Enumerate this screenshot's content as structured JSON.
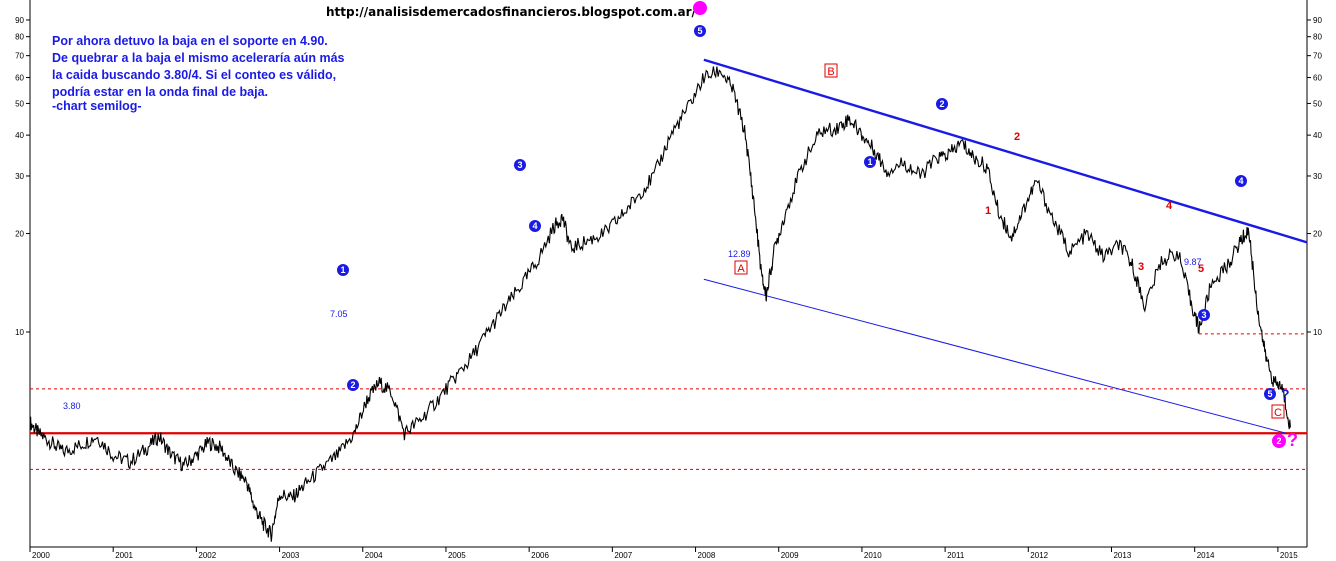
{
  "source_url": "http://analisisdemercadosfinancieros.blogspot.com.ar/",
  "note_lines": [
    "Por ahora detuvo la baja en el soporte en 4.90.",
    "De quebrar a la baja el mismo aceleraría aún más",
    "la caida buscando 3.80/4. Si el conteo es válido,",
    "podría estar en la onda final de baja.",
    "-chart semilog-"
  ],
  "colors": {
    "price": "#000000",
    "trend_line": "#1a1ae6",
    "support": "#e00000",
    "wave_blue": "#1a1ae6",
    "wave_red": "#e00000",
    "highlight": "#ff00ff"
  },
  "chart_data": {
    "type": "line",
    "scale": "log",
    "ylim": [
      2.2,
      100
    ],
    "xlim": [
      2000.0,
      2015.35
    ],
    "y_ticks": [
      10,
      20,
      30,
      40,
      50,
      60,
      70,
      80,
      90
    ],
    "x_ticks": [
      "2000",
      "2001",
      "2002",
      "2003",
      "2004",
      "2005",
      "2006",
      "2007",
      "2008",
      "2009",
      "2010",
      "2011",
      "2012",
      "2013",
      "2014",
      "2015"
    ],
    "grid": false,
    "series": [
      {
        "values_x": [
          2000.0,
          2000.1,
          2000.25,
          2000.4,
          2000.6,
          2000.8,
          2001.0,
          2001.2,
          2001.4,
          2001.55,
          2001.7,
          2001.85,
          2002.0,
          2002.15,
          2002.3,
          2002.45,
          2002.6,
          2002.7,
          2002.8,
          2002.9,
          2003.0,
          2003.15,
          2003.3,
          2003.5,
          2003.7,
          2003.9,
          2004.05,
          2004.2,
          2004.35,
          2004.5,
          2004.7,
          2004.9,
          2005.1,
          2005.3,
          2005.5,
          2005.7,
          2005.9,
          2006.1,
          2006.3,
          2006.4,
          2006.5,
          2006.7,
          2006.9,
          2007.1,
          2007.3,
          2007.5,
          2007.7,
          2007.9,
          2008.1,
          2008.3,
          2008.45,
          2008.6,
          2008.7,
          2008.8,
          2008.85,
          2008.95,
          2009.1,
          2009.3,
          2009.5,
          2009.7,
          2009.85,
          2010.0,
          2010.15,
          2010.3,
          2010.5,
          2010.7,
          2010.9,
          2011.05,
          2011.2,
          2011.35,
          2011.5,
          2011.65,
          2011.8,
          2011.95,
          2012.1,
          2012.3,
          2012.5,
          2012.7,
          2012.9,
          2013.1,
          2013.25,
          2013.4,
          2013.6,
          2013.8,
          2013.95,
          2014.05,
          2014.2,
          2014.4,
          2014.55,
          2014.65,
          2014.75,
          2014.85,
          2014.95,
          2015.05,
          2015.15
        ],
        "values_y": [
          5.3,
          4.9,
          4.6,
          4.3,
          4.5,
          4.8,
          4.2,
          4.0,
          4.4,
          4.8,
          4.2,
          3.9,
          4.2,
          4.6,
          4.4,
          3.8,
          3.5,
          2.9,
          2.6,
          2.4,
          3.2,
          3.1,
          3.4,
          3.8,
          4.2,
          4.9,
          6.2,
          7.0,
          6.5,
          4.9,
          5.4,
          6.2,
          7.2,
          8.3,
          10.0,
          11.8,
          13.8,
          16.5,
          21.0,
          22.5,
          18.0,
          19.0,
          20.0,
          22.5,
          26.0,
          30.0,
          40.0,
          48.0,
          60.0,
          63.0,
          55.0,
          40.0,
          25.0,
          14.5,
          12.9,
          18.0,
          24.0,
          33.0,
          41.0,
          42.0,
          45.0,
          40.0,
          36.0,
          31.0,
          33.0,
          30.0,
          34.0,
          35.0,
          38.0,
          34.0,
          32.0,
          23.0,
          19.5,
          24.0,
          29.0,
          22.0,
          17.5,
          20.0,
          17.0,
          18.5,
          16.0,
          12.0,
          16.5,
          17.5,
          12.5,
          10.2,
          14.0,
          16.0,
          19.0,
          20.5,
          12.0,
          8.5,
          7.0,
          6.8,
          5.1
        ]
      }
    ],
    "support_levels": [
      {
        "value": 4.9,
        "style": "solid"
      },
      {
        "value": 3.8,
        "style": "dashed"
      },
      {
        "value": 6.7,
        "style": "dashed"
      },
      {
        "value": 9.87,
        "style": "dashed"
      }
    ],
    "trend_lines": [
      {
        "from": [
          2008.1,
          68.0
        ],
        "to": [
          2015.35,
          18.8
        ],
        "weight": "thick"
      },
      {
        "from": [
          2008.1,
          14.5
        ],
        "to": [
          2015.1,
          4.9
        ],
        "weight": "thin"
      }
    ],
    "value_labels": [
      "7.05",
      "3.80",
      "12.89",
      "9.87"
    ],
    "wave_labels_blue": [
      "1",
      "2",
      "3",
      "4",
      "5",
      "1",
      "2",
      "3",
      "4",
      "5"
    ],
    "wave_labels_red": [
      "1",
      "2",
      "3",
      "4",
      "5"
    ],
    "box_labels": [
      "A",
      "B",
      "C"
    ],
    "question_labels": [
      "?",
      "?"
    ],
    "magenta_labels": [
      "2"
    ]
  }
}
